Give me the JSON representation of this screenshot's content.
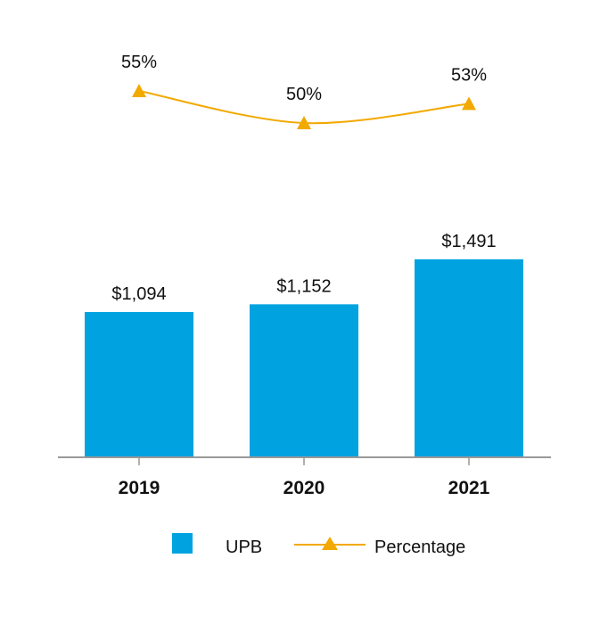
{
  "chart_data": {
    "type": "bar",
    "categories": [
      "2019",
      "2020",
      "2021"
    ],
    "series": [
      {
        "name": "UPB",
        "kind": "bar",
        "values": [
          1094,
          1152,
          1491
        ],
        "labels": [
          "$1,094",
          "$1,152",
          "$1,491"
        ],
        "color": "#00a3e0"
      },
      {
        "name": "Percentage",
        "kind": "line",
        "marker": "triangle",
        "values": [
          55,
          50,
          53
        ],
        "labels": [
          "55%",
          "50%",
          "53%"
        ],
        "color": "#f2a900"
      }
    ],
    "title": "",
    "xlabel": "",
    "ylabel": "",
    "grid": false,
    "legend": "bottom-center"
  },
  "legend": {
    "upb_label": "UPB",
    "percentage_label": "Percentage"
  }
}
